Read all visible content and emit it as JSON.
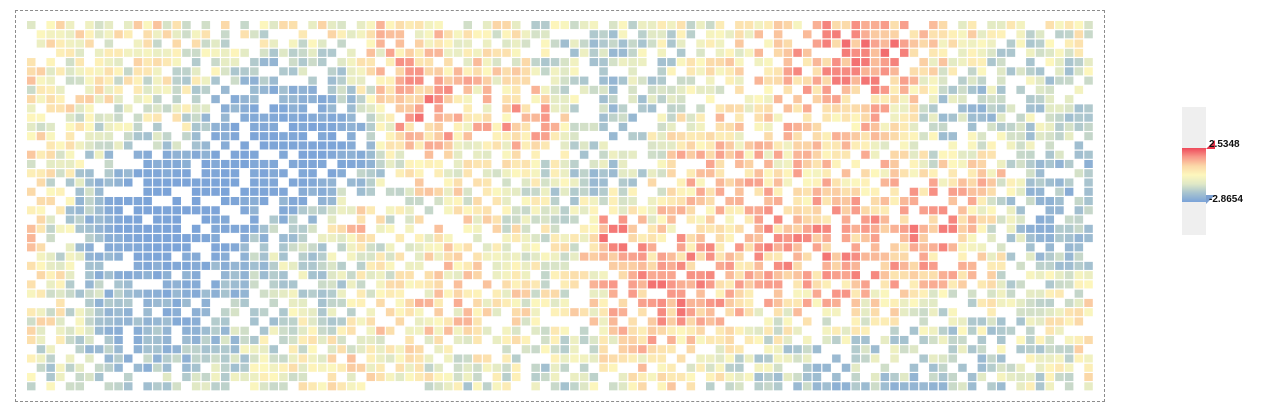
{
  "chart_data": {
    "type": "heatmap",
    "title": "",
    "xlabel": "",
    "ylabel": "",
    "grid": false,
    "value_range": [
      -2.8654,
      2.5348
    ],
    "rows": 40,
    "columns": 110,
    "empty_fraction": 0.22,
    "color_scale": [
      "#7ba3d8",
      "#a7c3cf",
      "#dfe8c6",
      "#fdf7bd",
      "#fbd8a8",
      "#f89a8a",
      "#ee4a5b"
    ],
    "empty_color": "#ffffff",
    "legend": {
      "position": "right",
      "max_label": "2.5348",
      "min_label": "-2.8654"
    }
  }
}
